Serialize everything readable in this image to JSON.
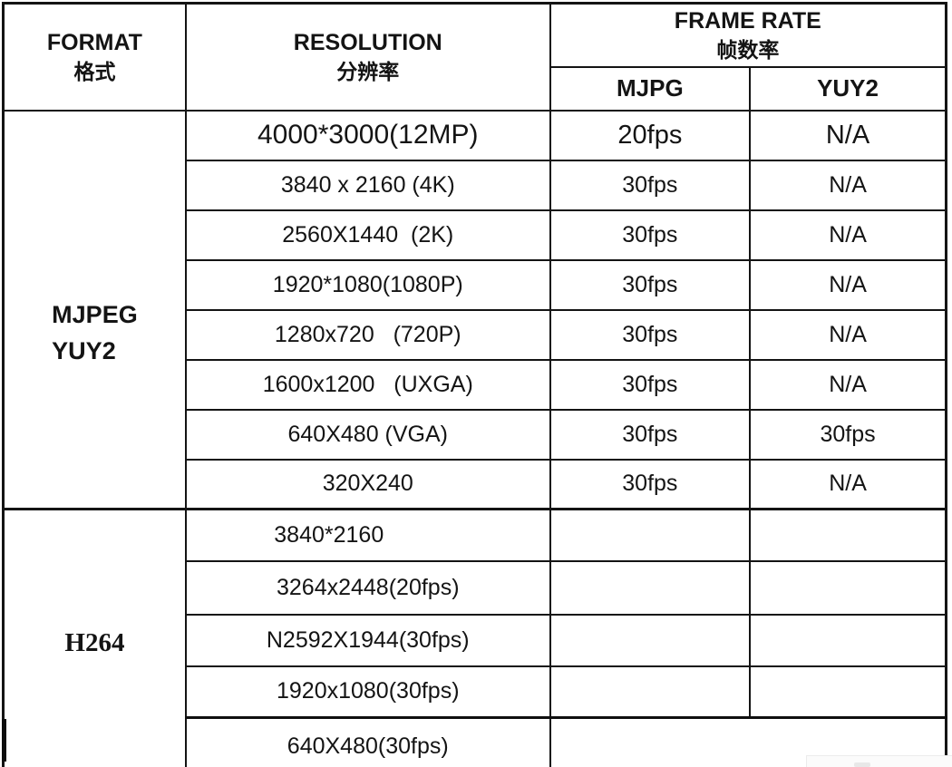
{
  "table": {
    "header": {
      "format_en": "FORMAT",
      "format_zh": "格式",
      "resolution_en": "RESOLUTION",
      "resolution_zh": "分辨率",
      "framerate_en": "FRAME RATE",
      "framerate_zh": "帧数率",
      "sub_mjpg": "MJPG",
      "sub_yuy2": "YUY2"
    },
    "groups": [
      {
        "format_lines": [
          "MJPEG",
          "YUY2"
        ],
        "rows": [
          {
            "resolution": "4000*3000(12MP)",
            "mjpg": "20fps",
            "yuy2": "N/A",
            "emphasis": true
          },
          {
            "resolution": "3840 x 2160 (4K)",
            "mjpg": "30fps",
            "yuy2": "N/A"
          },
          {
            "resolution": "2560X1440  (2K)",
            "mjpg": "30fps",
            "yuy2": "N/A"
          },
          {
            "resolution": "1920*1080(1080P)",
            "mjpg": "30fps",
            "yuy2": "N/A"
          },
          {
            "resolution": "1280x720   (720P)",
            "mjpg": "30fps",
            "yuy2": "N/A"
          },
          {
            "resolution": "1600x1200   (UXGA)",
            "mjpg": "30fps",
            "yuy2": "N/A"
          },
          {
            "resolution": "640X480 (VGA)",
            "mjpg": "30fps",
            "yuy2": "30fps"
          },
          {
            "resolution": "320X240",
            "mjpg": "30fps",
            "yuy2": "N/A"
          }
        ]
      },
      {
        "format_lines": [
          "H264"
        ],
        "rows": [
          {
            "resolution": "3840*2160",
            "mjpg": "",
            "yuy2": "",
            "shift_left": true
          },
          {
            "resolution": "3264x2448(20fps)",
            "mjpg": "",
            "yuy2": ""
          },
          {
            "resolution": "N2592X1944(30fps)",
            "mjpg": "",
            "yuy2": ""
          },
          {
            "resolution": "1920x1080(30fps)",
            "mjpg": "",
            "yuy2": ""
          },
          {
            "resolution": "640X480(30fps)",
            "merged": true
          }
        ]
      }
    ]
  },
  "colors": {
    "border": "#141414",
    "text": "#141414",
    "background": "#ffffff"
  }
}
